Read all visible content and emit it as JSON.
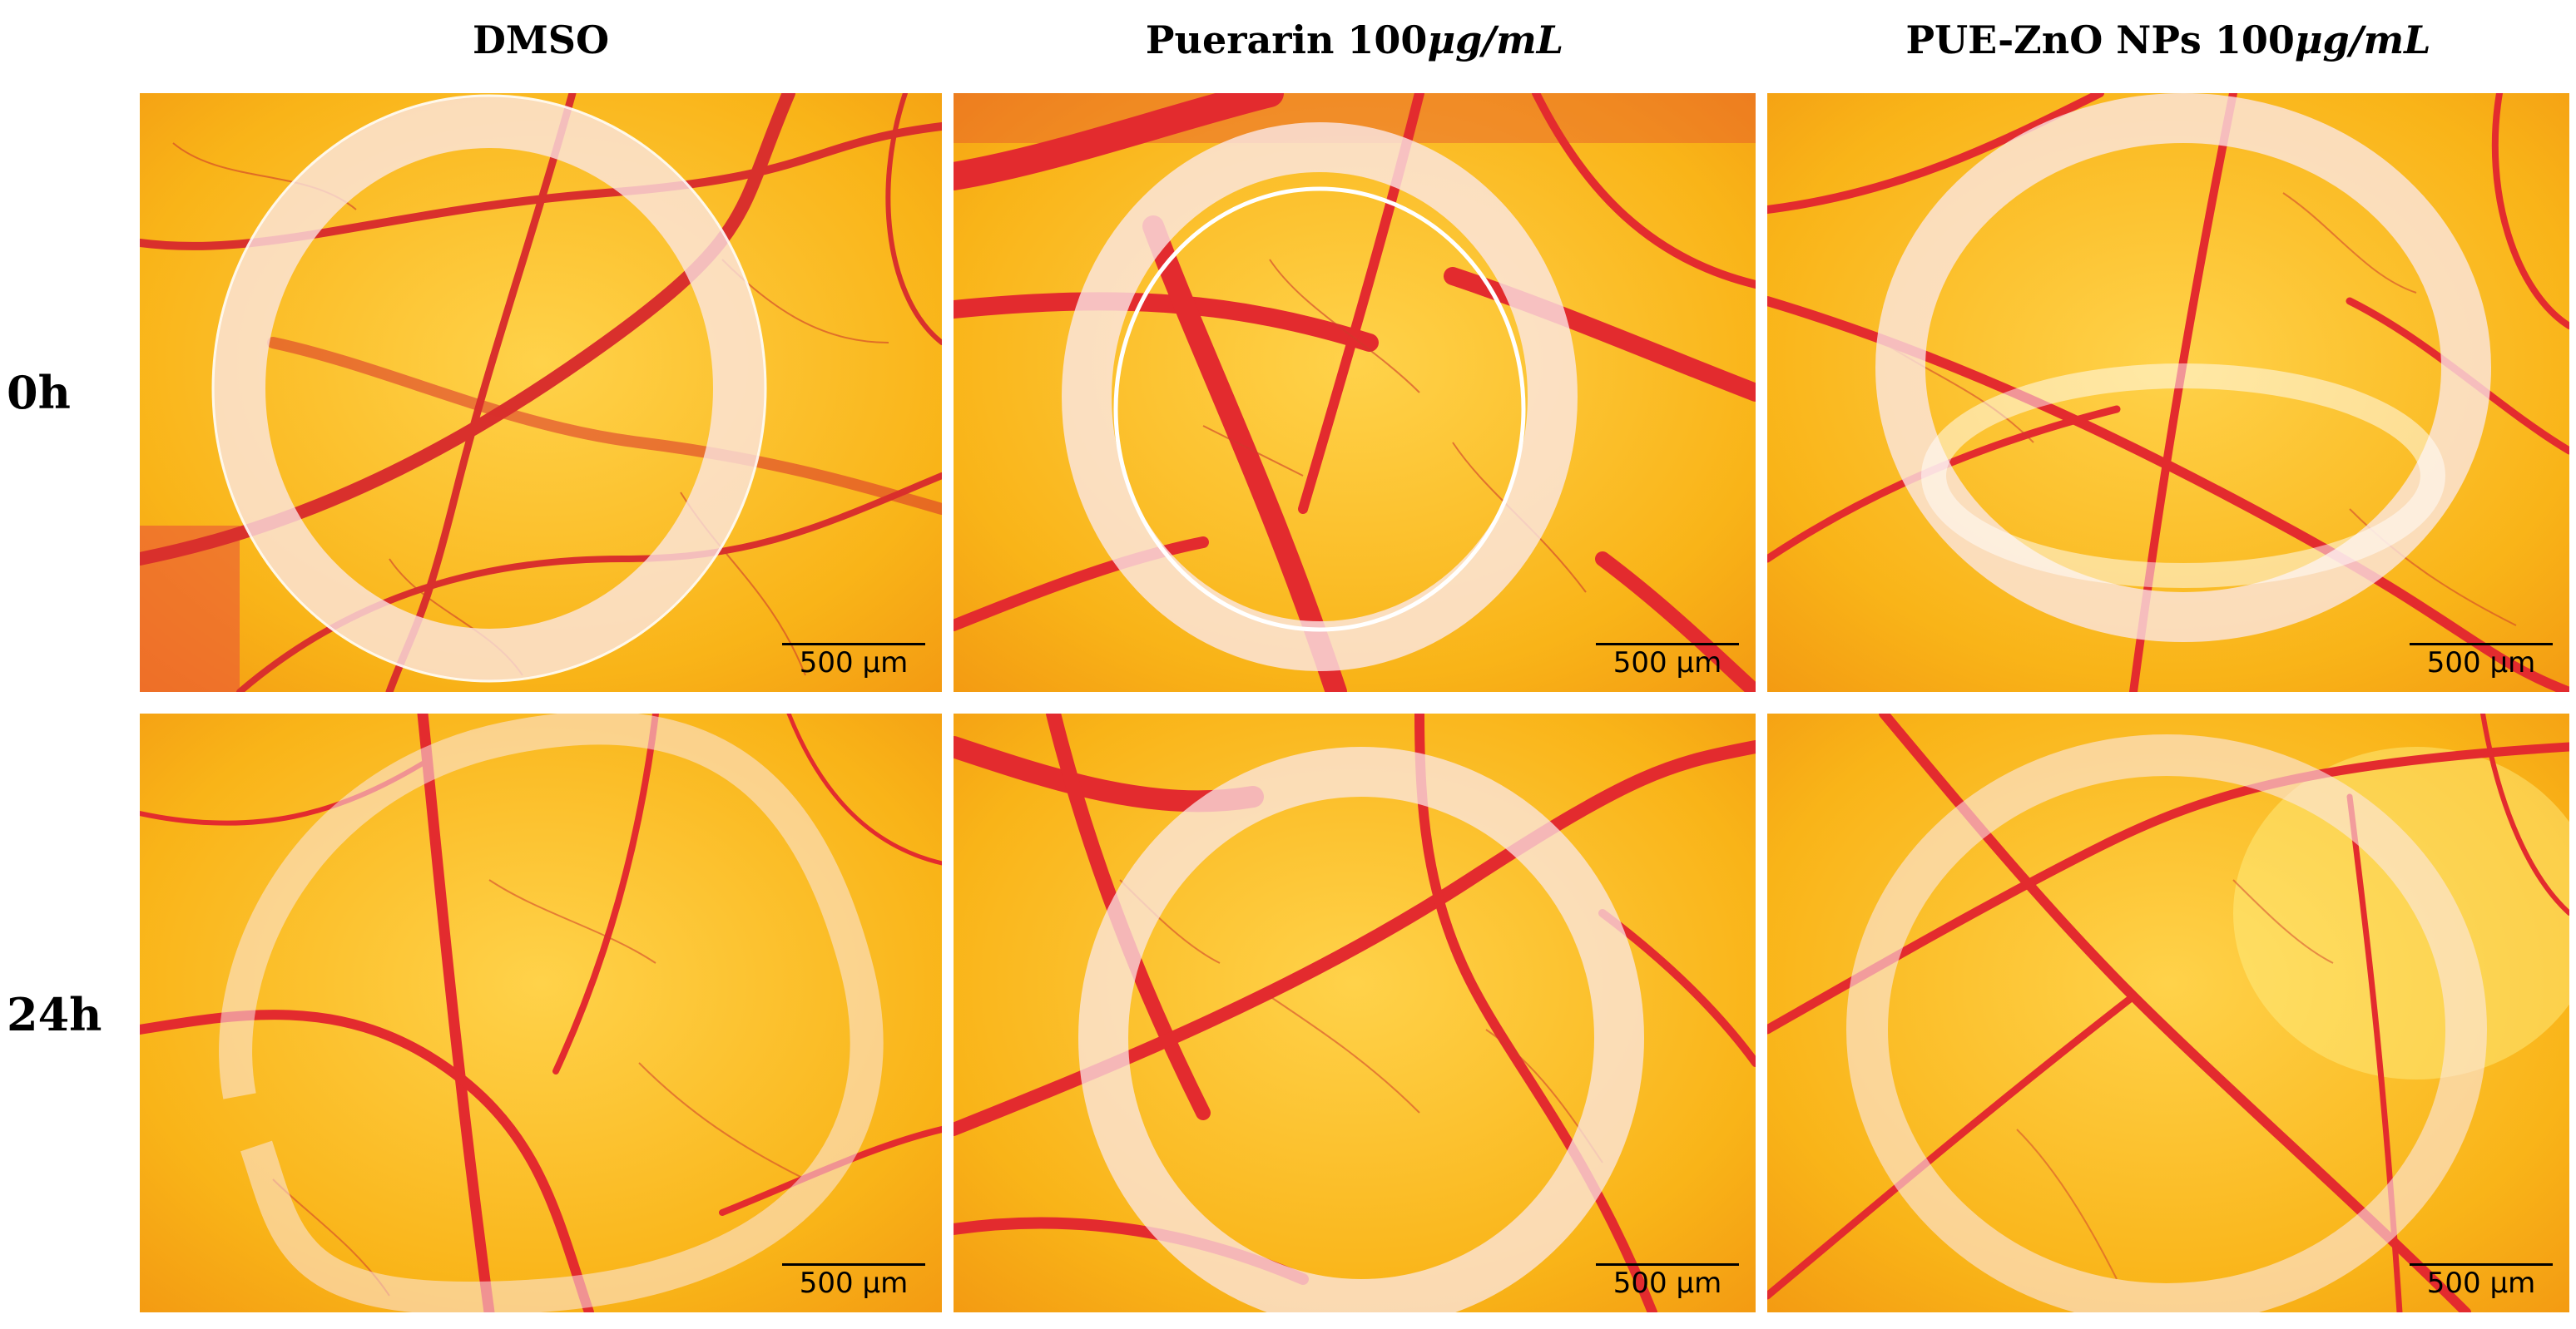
{
  "figure": {
    "columns": [
      {
        "label": "DMSO",
        "unit_text": ""
      },
      {
        "label": "Puerarin 100 ",
        "unit_text": "μg/mL"
      },
      {
        "label": "PUE-ZnO NPs 100 ",
        "unit_text": "μg/mL"
      }
    ],
    "rows": [
      {
        "label": "0h"
      },
      {
        "label": "24h"
      }
    ],
    "scale_bar": "500 μm"
  },
  "colors": {
    "background_yellow": "#f9b418",
    "vessel_red": "#e32b2e",
    "ring_white": "#fbe7e6"
  }
}
